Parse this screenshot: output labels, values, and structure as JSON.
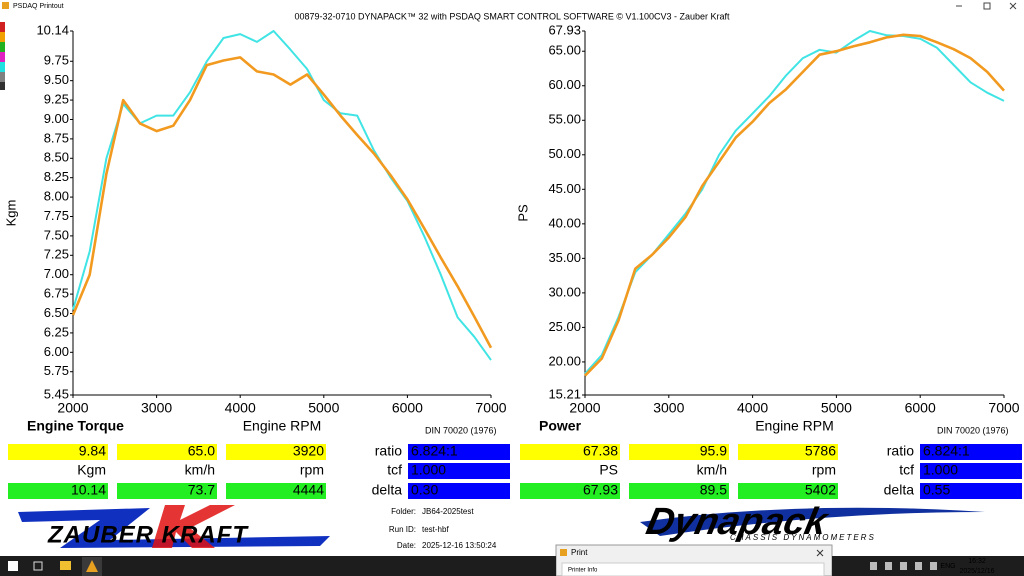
{
  "window": {
    "app_title": "PSDAQ Printout",
    "title": "00879-32-0710 DYNAPACK™ 32 with PSDAQ SMART CONTROL SOFTWARE © V1.100CV3 - Zauber Kraft"
  },
  "chart_data": [
    {
      "type": "line",
      "y_label": "Kgm",
      "x_label": "Engine RPM",
      "xlim": [
        2000,
        7000
      ],
      "xticks": [
        2000,
        3000,
        4000,
        5000,
        6000,
        7000
      ],
      "ylim": [
        5.45,
        10.14
      ],
      "yticks": [
        5.45,
        5.75,
        {
          "value": 6,
          "label": "6.00"
        },
        6.25,
        {
          "value": 6.5,
          "label": "6.50"
        },
        6.75,
        {
          "value": 7,
          "label": "7.00"
        },
        7.25,
        {
          "value": 7.5,
          "label": "7.50"
        },
        7.75,
        {
          "value": 8,
          "label": "8.00"
        },
        8.25,
        {
          "value": 8.5,
          "label": "8.50"
        },
        8.75,
        {
          "value": 9,
          "label": "9.00"
        },
        9.25,
        {
          "value": 9.5,
          "label": "9.50"
        },
        9.75,
        10.14
      ],
      "x": [
        2000,
        2200,
        2400,
        2600,
        2800,
        3000,
        3200,
        3400,
        3600,
        3800,
        4000,
        4200,
        4400,
        4600,
        4800,
        5000,
        5200,
        5400,
        5600,
        5800,
        6000,
        6200,
        6400,
        6600,
        6800,
        7000
      ],
      "series": [
        {
          "color": "#40e4e4",
          "values": [
            6.55,
            7.3,
            8.5,
            9.2,
            8.95,
            9.05,
            9.05,
            9.35,
            9.75,
            10.05,
            10.1,
            10.0,
            10.14,
            9.9,
            9.65,
            9.25,
            9.08,
            9.05,
            8.6,
            8.25,
            7.95,
            7.5,
            7.0,
            6.45,
            6.2,
            5.9
          ]
        },
        {
          "color": "#f29a1f",
          "values": [
            6.48,
            7.0,
            8.3,
            9.25,
            8.95,
            8.85,
            8.92,
            9.25,
            9.7,
            9.76,
            9.8,
            9.62,
            9.58,
            9.45,
            9.58,
            9.32,
            9.05,
            8.8,
            8.56,
            8.28,
            7.97,
            7.6,
            7.22,
            6.85,
            6.46,
            6.06
          ]
        }
      ]
    },
    {
      "type": "line",
      "y_label": "PS",
      "x_label": "Engine RPM",
      "xlim": [
        2000,
        7000
      ],
      "xticks": [
        2000,
        3000,
        4000,
        5000,
        6000,
        7000
      ],
      "ylim": [
        15.21,
        67.93
      ],
      "yticks": [
        15.21,
        {
          "value": 20,
          "label": "20.00"
        },
        {
          "value": 25,
          "label": "25.00"
        },
        {
          "value": 30,
          "label": "30.00"
        },
        {
          "value": 35,
          "label": "35.00"
        },
        {
          "value": 40,
          "label": "40.00"
        },
        {
          "value": 45,
          "label": "45.00"
        },
        {
          "value": 50,
          "label": "50.00"
        },
        {
          "value": 55,
          "label": "55.00"
        },
        {
          "value": 60,
          "label": "60.00"
        },
        {
          "value": 65,
          "label": "65.00"
        },
        67.93
      ],
      "x": [
        2000,
        2200,
        2400,
        2600,
        2800,
        3000,
        3200,
        3400,
        3600,
        3800,
        4000,
        4200,
        4400,
        4600,
        4800,
        5000,
        5200,
        5400,
        5600,
        5800,
        6000,
        6200,
        6400,
        6600,
        6800,
        7000
      ],
      "series": [
        {
          "color": "#40e4e4",
          "values": [
            18.3,
            21,
            26.5,
            33,
            35.5,
            38.5,
            41.5,
            45,
            50,
            53.5,
            56,
            58.5,
            61.5,
            64,
            65.2,
            64.8,
            66.5,
            67.93,
            67.3,
            67.2,
            66.8,
            65.5,
            63,
            60.5,
            59,
            57.8
          ]
        },
        {
          "color": "#f29a1f",
          "values": [
            18.0,
            20.5,
            26,
            33.5,
            35.5,
            38,
            41,
            45.5,
            49,
            52.5,
            54.8,
            57.5,
            59.5,
            62,
            64.5,
            65,
            65.7,
            66.3,
            67,
            67.38,
            67.2,
            66.3,
            65.3,
            64,
            62,
            59.3
          ]
        }
      ]
    }
  ],
  "panels": [
    {
      "title": "Engine Torque",
      "standard": "DIN 70020 (1976)",
      "current": [
        "9.84",
        "65.0",
        "3920"
      ],
      "units": [
        "Kgm",
        "km/h",
        "rpm"
      ],
      "peak": [
        "10.14",
        "73.7",
        "4444"
      ],
      "ratio_label": "ratio",
      "ratio": "6.824:1",
      "tcf_label": "tcf",
      "tcf": "1.000",
      "delta_label": "delta",
      "delta": "0.30"
    },
    {
      "title": "Power",
      "standard": "DIN 70020 (1976)",
      "current": [
        "67.38",
        "95.9",
        "5786"
      ],
      "units": [
        "PS",
        "km/h",
        "rpm"
      ],
      "peak": [
        "67.93",
        "89.5",
        "5402"
      ],
      "ratio_label": "ratio",
      "ratio": "6.824:1",
      "tcf_label": "tcf",
      "tcf": "1.000",
      "delta_label": "delta",
      "delta": "0.55"
    }
  ],
  "run_info": {
    "folder_label": "Folder:",
    "folder": "JB64-2025test",
    "run_label": "Run ID:",
    "run": "test-hbf",
    "date_label": "Date:",
    "date": "2025-12-16 13:50:24"
  },
  "logos": {
    "zauber": "ZAUBER KRAFT",
    "dynapack": "Dynapack",
    "dynapack_sub": "CHASSIS DYNAMOMETERS"
  },
  "print_dialog": {
    "title": "Print",
    "section": "Printer Info"
  },
  "taskbar": {
    "language": "ENG",
    "time": "16:32",
    "date": "2025/12/16"
  }
}
